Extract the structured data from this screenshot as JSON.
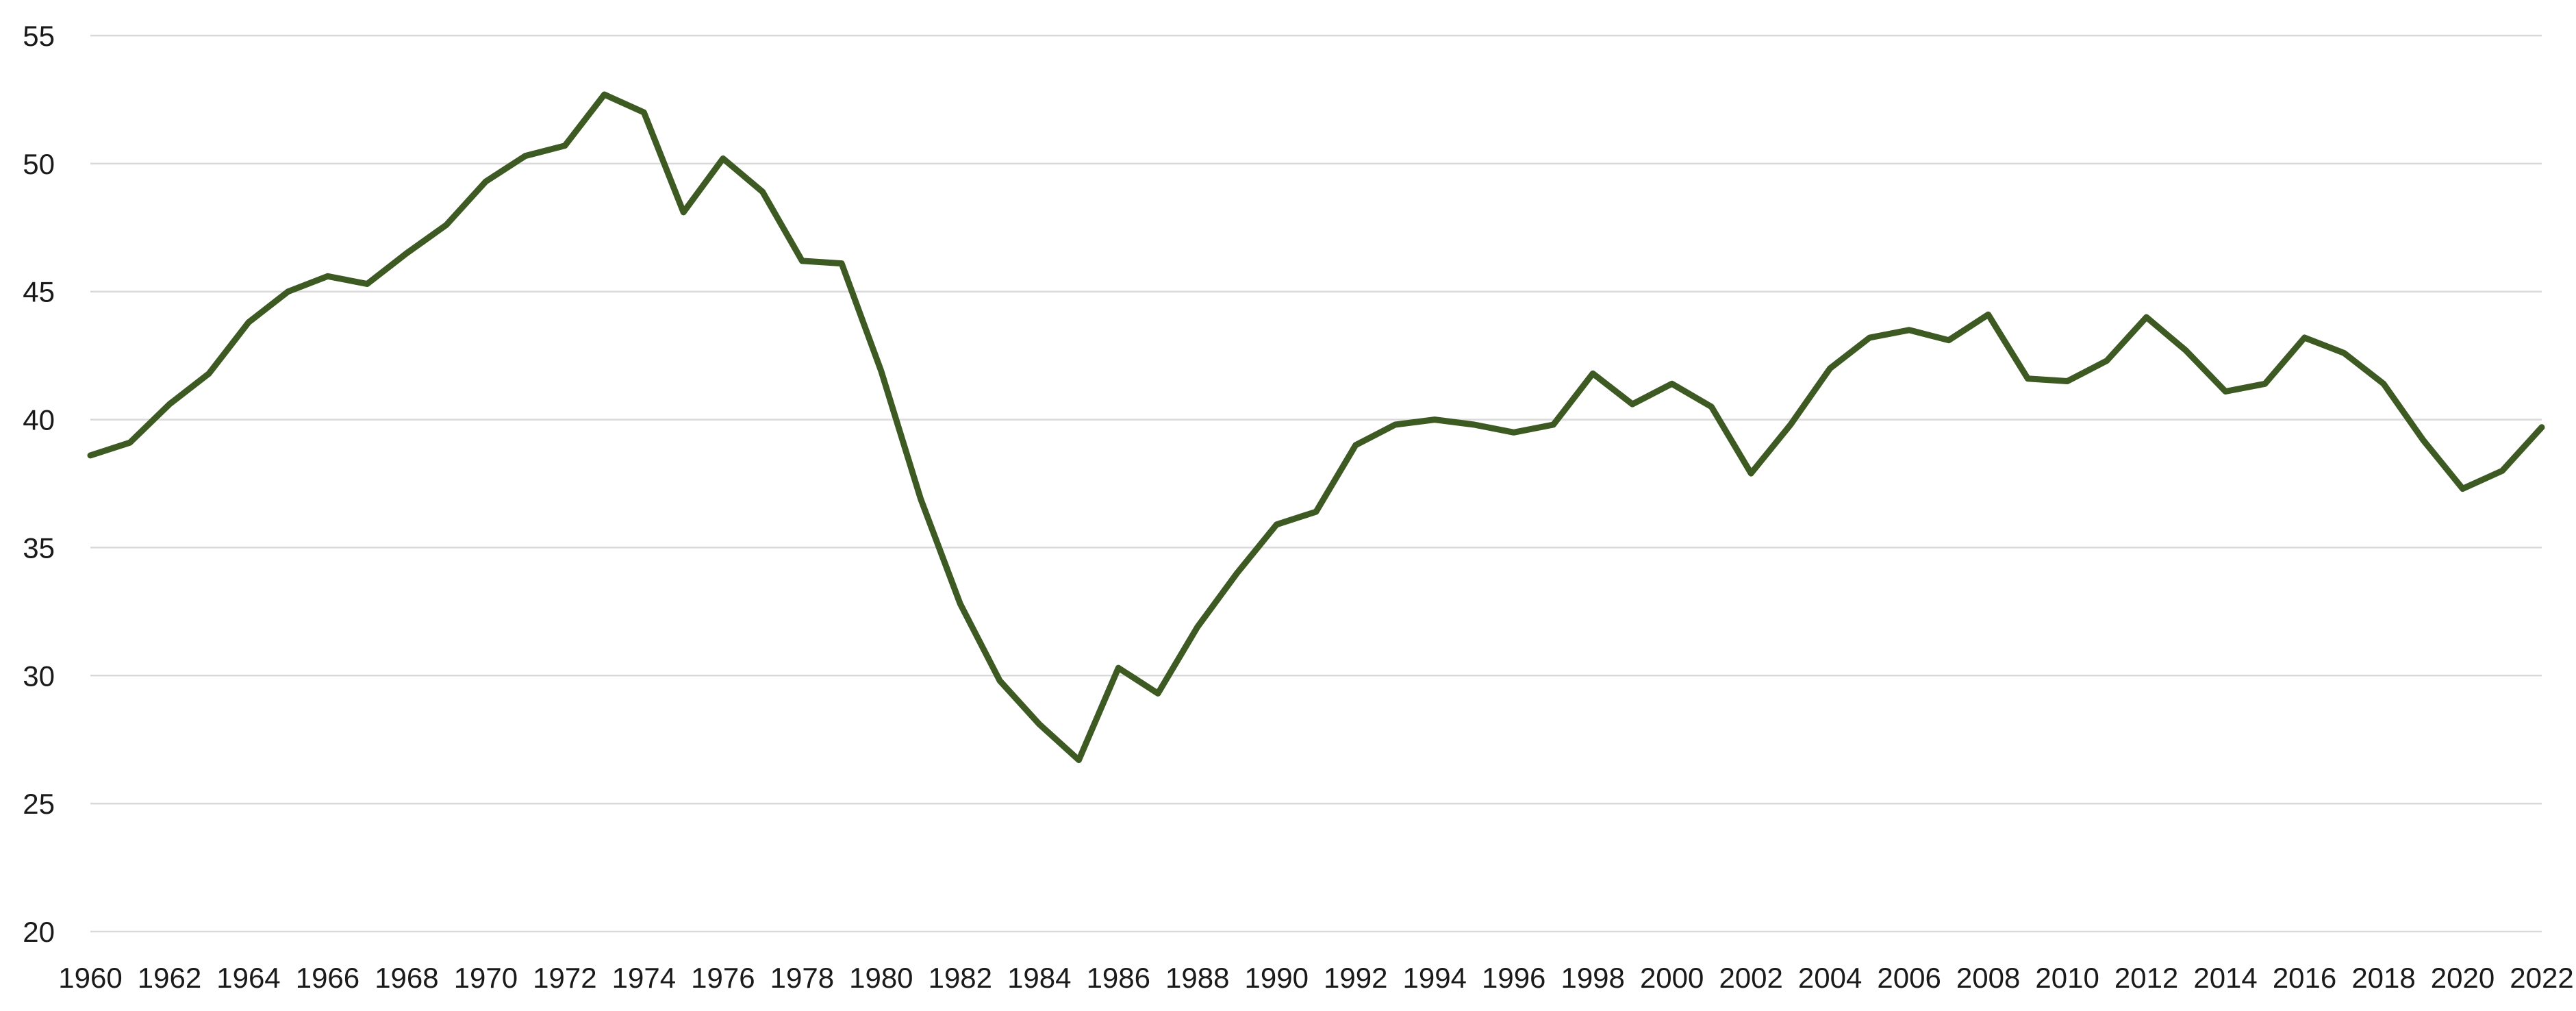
{
  "chart_data": {
    "type": "line",
    "title": "",
    "xlabel": "",
    "ylabel": "",
    "ylim": [
      20,
      55
    ],
    "yticks": [
      20,
      25,
      30,
      35,
      40,
      45,
      50,
      55
    ],
    "xlim": [
      1960,
      2022
    ],
    "xticks": [
      1960,
      1962,
      1964,
      1966,
      1968,
      1970,
      1972,
      1974,
      1976,
      1978,
      1980,
      1982,
      1984,
      1986,
      1988,
      1990,
      1992,
      1994,
      1996,
      1998,
      2000,
      2002,
      2004,
      2006,
      2008,
      2010,
      2012,
      2014,
      2016,
      2018,
      2020,
      2022
    ],
    "grid": true,
    "legend": "none",
    "line_color": "#3d5a23",
    "grid_color": "#d9d9d9",
    "x": [
      1960,
      1961,
      1962,
      1963,
      1964,
      1965,
      1966,
      1967,
      1968,
      1969,
      1970,
      1971,
      1972,
      1973,
      1974,
      1975,
      1976,
      1977,
      1978,
      1979,
      1980,
      1981,
      1982,
      1983,
      1984,
      1985,
      1986,
      1987,
      1988,
      1989,
      1990,
      1991,
      1992,
      1993,
      1994,
      1995,
      1996,
      1997,
      1998,
      1999,
      2000,
      2001,
      2002,
      2003,
      2004,
      2005,
      2006,
      2007,
      2008,
      2009,
      2010,
      2011,
      2012,
      2013,
      2014,
      2015,
      2016,
      2017,
      2018,
      2019,
      2020,
      2021,
      2022
    ],
    "series": [
      {
        "values": [
          38.6,
          39.1,
          40.6,
          41.8,
          43.8,
          45.0,
          45.6,
          45.3,
          46.5,
          47.6,
          49.3,
          50.3,
          50.7,
          52.7,
          52.0,
          48.1,
          50.2,
          48.9,
          46.2,
          46.1,
          41.9,
          36.9,
          32.8,
          29.8,
          28.1,
          26.7,
          30.3,
          29.3,
          31.9,
          34.0,
          35.9,
          36.4,
          39.0,
          39.8,
          40.0,
          39.8,
          39.5,
          39.8,
          41.8,
          40.6,
          41.4,
          40.5,
          37.9,
          39.8,
          42.0,
          43.2,
          43.5,
          43.1,
          44.1,
          41.6,
          41.5,
          42.3,
          44.0,
          42.7,
          41.1,
          41.4,
          43.2,
          42.6,
          41.4,
          39.2,
          37.3,
          38.0,
          39.7
        ]
      }
    ]
  }
}
